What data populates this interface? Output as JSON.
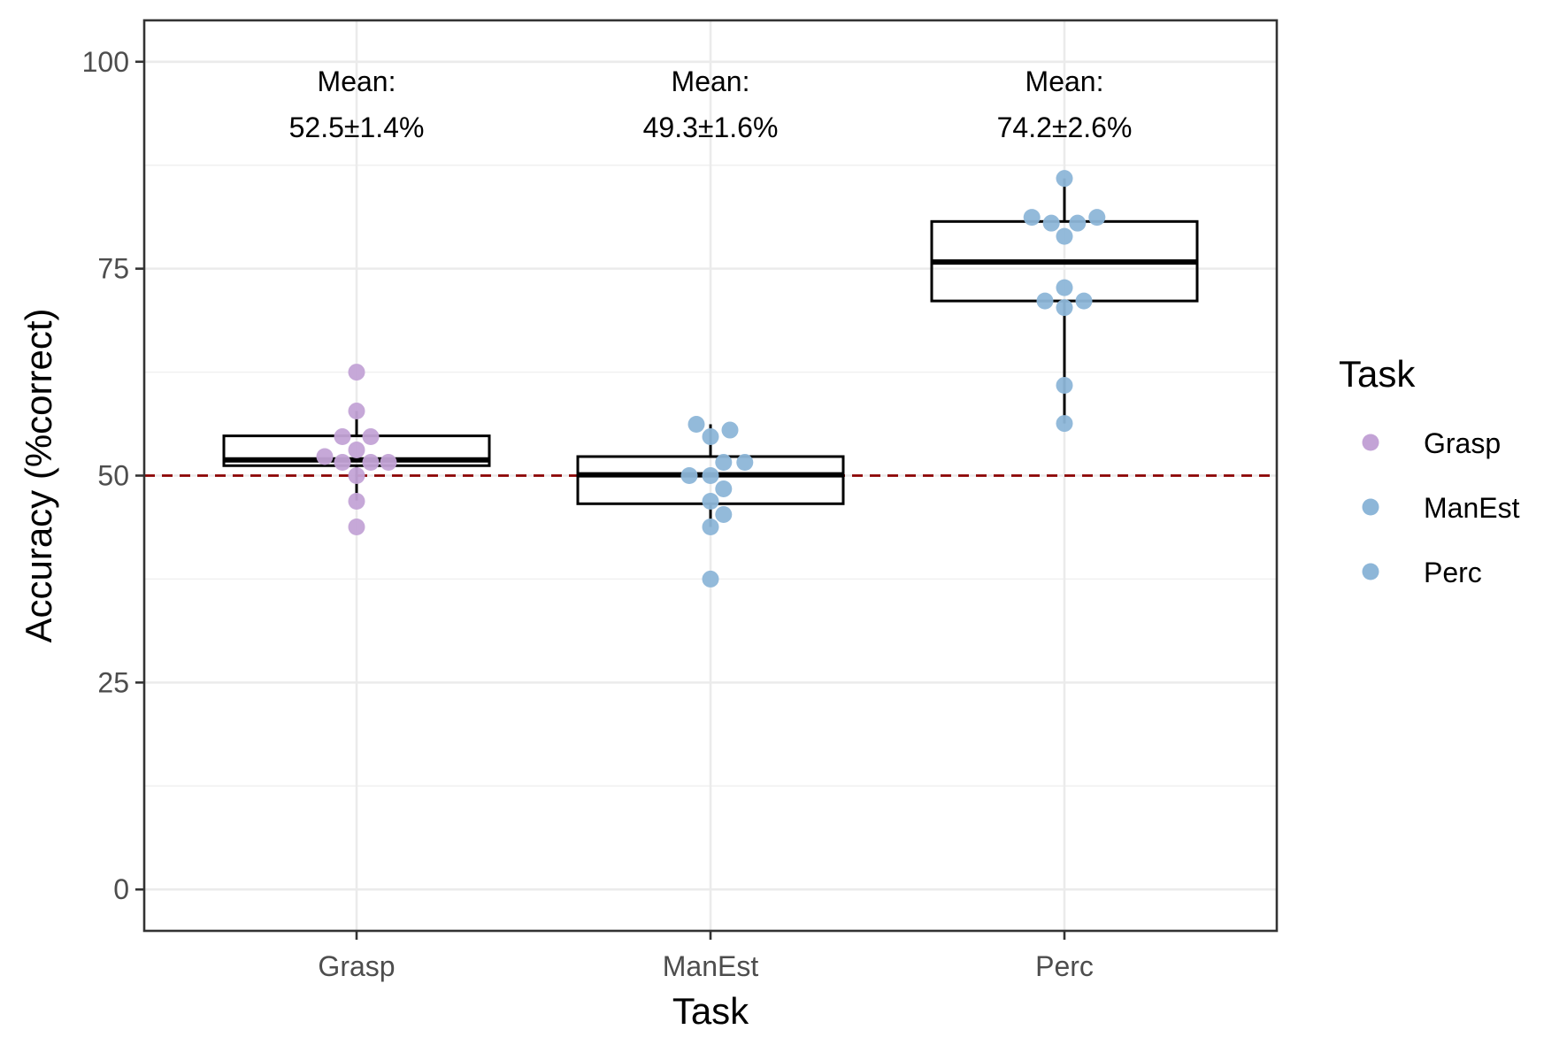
{
  "chart_data": {
    "type": "box",
    "xlabel": "Task",
    "ylabel": "Accuracy (%correct)",
    "ylim": [
      -5,
      105
    ],
    "yticks": [
      0,
      25,
      50,
      75,
      100
    ],
    "categories": [
      "Grasp",
      "ManEst",
      "Perc"
    ],
    "grid": true,
    "reference_line": {
      "y": 50,
      "style": "dashed",
      "color": "#8b0000"
    },
    "annotations": [
      {
        "category": "Grasp",
        "line1": "Mean:",
        "line2": "52.5±1.4%"
      },
      {
        "category": "ManEst",
        "line1": "Mean:",
        "line2": "49.3±1.6%"
      },
      {
        "category": "Perc",
        "line1": "Mean:",
        "line2": "74.2±2.6%"
      }
    ],
    "boxes": [
      {
        "category": "Grasp",
        "min": 47,
        "q1": 51.2,
        "median": 51.9,
        "q3": 54.8,
        "max": 57.8
      },
      {
        "category": "ManEst",
        "min": 43.8,
        "q1": 46.6,
        "median": 50.1,
        "q3": 52.3,
        "max": 56.2
      },
      {
        "category": "Perc",
        "min": 56.3,
        "q1": 71.1,
        "median": 75.8,
        "q3": 80.7,
        "max": 85.9
      }
    ],
    "series": [
      {
        "name": "Grasp",
        "color": "#c3a3d6",
        "points": [
          {
            "x": "Grasp",
            "y": 62.5,
            "jitter": 0
          },
          {
            "x": "Grasp",
            "y": 57.8,
            "jitter": 0
          },
          {
            "x": "Grasp",
            "y": 54.7,
            "jitter": -0.04
          },
          {
            "x": "Grasp",
            "y": 54.7,
            "jitter": 0.04
          },
          {
            "x": "Grasp",
            "y": 53.1,
            "jitter": 0
          },
          {
            "x": "Grasp",
            "y": 52.3,
            "jitter": -0.09
          },
          {
            "x": "Grasp",
            "y": 51.6,
            "jitter": -0.04
          },
          {
            "x": "Grasp",
            "y": 51.6,
            "jitter": 0.04
          },
          {
            "x": "Grasp",
            "y": 51.6,
            "jitter": 0.09
          },
          {
            "x": "Grasp",
            "y": 50.0,
            "jitter": 0
          },
          {
            "x": "Grasp",
            "y": 46.9,
            "jitter": 0
          },
          {
            "x": "Grasp",
            "y": 43.8,
            "jitter": 0
          }
        ]
      },
      {
        "name": "ManEst",
        "color": "#8db6d8",
        "points": [
          {
            "x": "ManEst",
            "y": 56.2,
            "jitter": -0.04
          },
          {
            "x": "ManEst",
            "y": 55.5,
            "jitter": 0.055
          },
          {
            "x": "ManEst",
            "y": 54.7,
            "jitter": 0
          },
          {
            "x": "ManEst",
            "y": 51.6,
            "jitter": 0.037
          },
          {
            "x": "ManEst",
            "y": 51.6,
            "jitter": 0.097
          },
          {
            "x": "ManEst",
            "y": 50.0,
            "jitter": -0.06
          },
          {
            "x": "ManEst",
            "y": 50.0,
            "jitter": 0
          },
          {
            "x": "ManEst",
            "y": 48.4,
            "jitter": 0.037
          },
          {
            "x": "ManEst",
            "y": 46.9,
            "jitter": 0
          },
          {
            "x": "ManEst",
            "y": 45.3,
            "jitter": 0.037
          },
          {
            "x": "ManEst",
            "y": 43.8,
            "jitter": 0
          },
          {
            "x": "ManEst",
            "y": 37.5,
            "jitter": 0
          }
        ]
      },
      {
        "name": "Perc",
        "color": "#8db6d8",
        "points": [
          {
            "x": "Perc",
            "y": 85.9,
            "jitter": 0
          },
          {
            "x": "Perc",
            "y": 81.2,
            "jitter": -0.092
          },
          {
            "x": "Perc",
            "y": 81.2,
            "jitter": 0.092
          },
          {
            "x": "Perc",
            "y": 80.5,
            "jitter": -0.037
          },
          {
            "x": "Perc",
            "y": 80.5,
            "jitter": 0.037
          },
          {
            "x": "Perc",
            "y": 78.9,
            "jitter": 0
          },
          {
            "x": "Perc",
            "y": 72.7,
            "jitter": 0
          },
          {
            "x": "Perc",
            "y": 71.1,
            "jitter": -0.055
          },
          {
            "x": "Perc",
            "y": 71.1,
            "jitter": 0.055
          },
          {
            "x": "Perc",
            "y": 70.3,
            "jitter": 0
          },
          {
            "x": "Perc",
            "y": 60.9,
            "jitter": 0
          },
          {
            "x": "Perc",
            "y": 56.3,
            "jitter": 0
          }
        ]
      }
    ],
    "legend": {
      "title": "Task",
      "position": "right",
      "items": [
        {
          "label": "Grasp",
          "color": "#c3a3d6"
        },
        {
          "label": "ManEst",
          "color": "#8db6d8"
        },
        {
          "label": "Perc",
          "color": "#8db6d8"
        }
      ]
    }
  }
}
